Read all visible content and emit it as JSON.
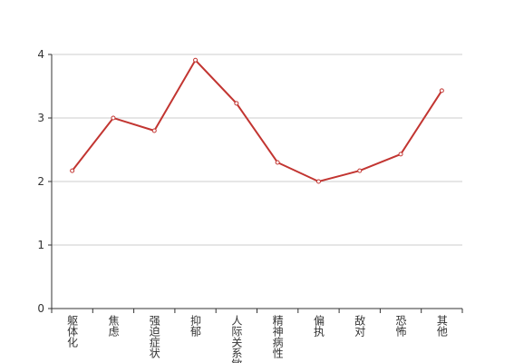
{
  "chart_data": {
    "type": "line",
    "categories": [
      "躯体化",
      "焦虑",
      "强迫症状",
      "抑郁",
      "人际关系敏感",
      "精神病性",
      "偏执",
      "敌对",
      "恐怖",
      "其他"
    ],
    "series": [
      {
        "name": "",
        "color": "#c23531",
        "values": [
          2.17,
          3.0,
          2.8,
          3.91,
          3.23,
          2.3,
          2.0,
          2.17,
          2.43,
          3.43
        ]
      }
    ],
    "ylim": [
      0,
      4
    ],
    "yticks": [
      0,
      1,
      2,
      3,
      4
    ],
    "grid": true
  }
}
